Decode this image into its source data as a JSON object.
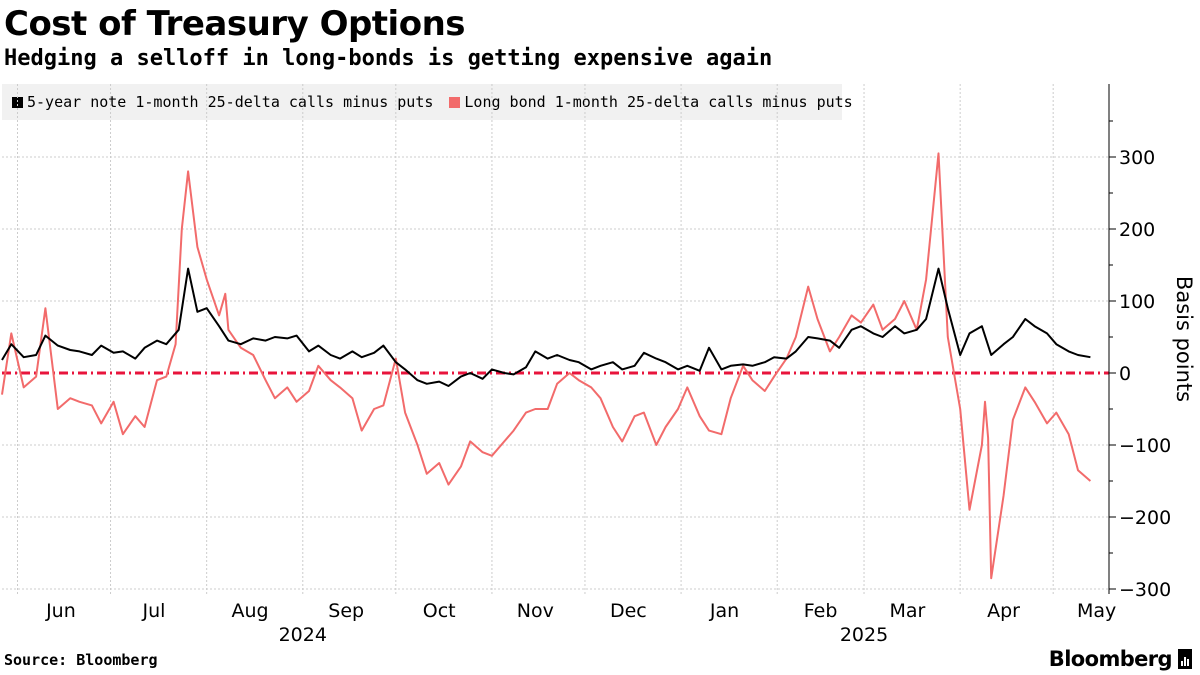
{
  "header": {
    "title": "Cost of Treasury Options",
    "subtitle": "Hedging a selloff in long-bonds is getting expensive again"
  },
  "footer": {
    "source": "Source: Bloomberg",
    "brand": "Bloomberg"
  },
  "colors": {
    "five_year": "#000000",
    "long_bond": "#f26b6b",
    "zero_line": "#e8143c",
    "grid": "#cccccc"
  },
  "chart_data": {
    "type": "line",
    "ylabel": "Basis points",
    "ylim": [
      -350,
      360
    ],
    "yticks": [
      300,
      200,
      100,
      0,
      -100,
      -200,
      -300
    ],
    "x_range": [
      "2024-05-27",
      "2025-05-19"
    ],
    "x_ticks": [
      {
        "label": "Jun",
        "month": 6,
        "year": 2024
      },
      {
        "label": "Jul",
        "month": 7,
        "year": 2024
      },
      {
        "label": "Aug",
        "month": 8,
        "year": 2024
      },
      {
        "label": "Sep",
        "month": 9,
        "year": 2024
      },
      {
        "label": "Oct",
        "month": 10,
        "year": 2024
      },
      {
        "label": "Nov",
        "month": 11,
        "year": 2024
      },
      {
        "label": "Dec",
        "month": 12,
        "year": 2024
      },
      {
        "label": "Jan",
        "month": 1,
        "year": 2025
      },
      {
        "label": "Feb",
        "month": 2,
        "year": 2025
      },
      {
        "label": "Mar",
        "month": 3,
        "year": 2025
      },
      {
        "label": "Apr",
        "month": 4,
        "year": 2025
      },
      {
        "label": "May",
        "month": 5,
        "year": 2025
      }
    ],
    "year_labels": [
      {
        "label": "2024",
        "date": "2024-09-01"
      },
      {
        "label": "2025",
        "date": "2025-03-01"
      }
    ],
    "reference_line": 0,
    "grid": true,
    "legend_position": "top-left",
    "series": [
      {
        "name": "5-year note 1-month 25-delta calls minus puts",
        "color": "#000000",
        "points": [
          [
            "2024-05-27",
            18
          ],
          [
            "2024-05-30",
            40
          ],
          [
            "2024-06-03",
            22
          ],
          [
            "2024-06-07",
            25
          ],
          [
            "2024-06-10",
            52
          ],
          [
            "2024-06-14",
            38
          ],
          [
            "2024-06-18",
            32
          ],
          [
            "2024-06-21",
            30
          ],
          [
            "2024-06-25",
            25
          ],
          [
            "2024-06-28",
            38
          ],
          [
            "2024-07-02",
            28
          ],
          [
            "2024-07-05",
            30
          ],
          [
            "2024-07-09",
            20
          ],
          [
            "2024-07-12",
            35
          ],
          [
            "2024-07-16",
            45
          ],
          [
            "2024-07-19",
            40
          ],
          [
            "2024-07-23",
            60
          ],
          [
            "2024-07-26",
            145
          ],
          [
            "2024-07-29",
            85
          ],
          [
            "2024-08-01",
            90
          ],
          [
            "2024-08-05",
            65
          ],
          [
            "2024-08-08",
            45
          ],
          [
            "2024-08-12",
            40
          ],
          [
            "2024-08-16",
            48
          ],
          [
            "2024-08-20",
            45
          ],
          [
            "2024-08-23",
            50
          ],
          [
            "2024-08-27",
            48
          ],
          [
            "2024-08-30",
            52
          ],
          [
            "2024-09-03",
            30
          ],
          [
            "2024-09-06",
            38
          ],
          [
            "2024-09-10",
            25
          ],
          [
            "2024-09-13",
            20
          ],
          [
            "2024-09-17",
            30
          ],
          [
            "2024-09-20",
            22
          ],
          [
            "2024-09-24",
            28
          ],
          [
            "2024-09-27",
            38
          ],
          [
            "2024-10-01",
            15
          ],
          [
            "2024-10-04",
            5
          ],
          [
            "2024-10-08",
            -10
          ],
          [
            "2024-10-11",
            -15
          ],
          [
            "2024-10-15",
            -12
          ],
          [
            "2024-10-18",
            -18
          ],
          [
            "2024-10-22",
            -5
          ],
          [
            "2024-10-25",
            0
          ],
          [
            "2024-10-29",
            -8
          ],
          [
            "2024-11-01",
            5
          ],
          [
            "2024-11-05",
            0
          ],
          [
            "2024-11-08",
            -2
          ],
          [
            "2024-11-12",
            8
          ],
          [
            "2024-11-15",
            30
          ],
          [
            "2024-11-19",
            20
          ],
          [
            "2024-11-22",
            25
          ],
          [
            "2024-11-26",
            18
          ],
          [
            "2024-11-29",
            15
          ],
          [
            "2024-12-03",
            5
          ],
          [
            "2024-12-06",
            10
          ],
          [
            "2024-12-10",
            15
          ],
          [
            "2024-12-13",
            5
          ],
          [
            "2024-12-17",
            10
          ],
          [
            "2024-12-20",
            28
          ],
          [
            "2024-12-24",
            20
          ],
          [
            "2024-12-27",
            15
          ],
          [
            "2024-12-31",
            5
          ],
          [
            "2025-01-03",
            10
          ],
          [
            "2025-01-07",
            3
          ],
          [
            "2025-01-10",
            35
          ],
          [
            "2025-01-14",
            5
          ],
          [
            "2025-01-17",
            10
          ],
          [
            "2025-01-21",
            12
          ],
          [
            "2025-01-24",
            10
          ],
          [
            "2025-01-28",
            15
          ],
          [
            "2025-01-31",
            22
          ],
          [
            "2025-02-04",
            20
          ],
          [
            "2025-02-07",
            30
          ],
          [
            "2025-02-11",
            50
          ],
          [
            "2025-02-14",
            48
          ],
          [
            "2025-02-18",
            45
          ],
          [
            "2025-02-21",
            35
          ],
          [
            "2025-02-25",
            60
          ],
          [
            "2025-02-28",
            65
          ],
          [
            "2025-03-04",
            55
          ],
          [
            "2025-03-07",
            50
          ],
          [
            "2025-03-11",
            65
          ],
          [
            "2025-03-14",
            55
          ],
          [
            "2025-03-18",
            60
          ],
          [
            "2025-03-21",
            75
          ],
          [
            "2025-03-25",
            145
          ],
          [
            "2025-03-28",
            90
          ],
          [
            "2025-04-01",
            25
          ],
          [
            "2025-04-04",
            55
          ],
          [
            "2025-04-08",
            65
          ],
          [
            "2025-04-11",
            25
          ],
          [
            "2025-04-15",
            40
          ],
          [
            "2025-04-18",
            50
          ],
          [
            "2025-04-22",
            75
          ],
          [
            "2025-04-25",
            65
          ],
          [
            "2025-04-29",
            55
          ],
          [
            "2025-05-02",
            40
          ],
          [
            "2025-05-06",
            30
          ],
          [
            "2025-05-09",
            25
          ],
          [
            "2025-05-13",
            22
          ]
        ]
      },
      {
        "name": "Long bond 1-month 25-delta calls minus puts",
        "color": "#f26b6b",
        "points": [
          [
            "2024-05-27",
            -30
          ],
          [
            "2024-05-30",
            55
          ],
          [
            "2024-06-03",
            -20
          ],
          [
            "2024-06-07",
            -5
          ],
          [
            "2024-06-10",
            90
          ],
          [
            "2024-06-12",
            20
          ],
          [
            "2024-06-14",
            -50
          ],
          [
            "2024-06-18",
            -35
          ],
          [
            "2024-06-21",
            -40
          ],
          [
            "2024-06-25",
            -45
          ],
          [
            "2024-06-28",
            -70
          ],
          [
            "2024-07-02",
            -40
          ],
          [
            "2024-07-05",
            -85
          ],
          [
            "2024-07-09",
            -60
          ],
          [
            "2024-07-12",
            -75
          ],
          [
            "2024-07-16",
            -10
          ],
          [
            "2024-07-19",
            -5
          ],
          [
            "2024-07-22",
            40
          ],
          [
            "2024-07-24",
            200
          ],
          [
            "2024-07-26",
            280
          ],
          [
            "2024-07-29",
            175
          ],
          [
            "2024-08-01",
            130
          ],
          [
            "2024-08-05",
            80
          ],
          [
            "2024-08-07",
            110
          ],
          [
            "2024-08-08",
            60
          ],
          [
            "2024-08-12",
            35
          ],
          [
            "2024-08-16",
            25
          ],
          [
            "2024-08-20",
            -10
          ],
          [
            "2024-08-23",
            -35
          ],
          [
            "2024-08-27",
            -20
          ],
          [
            "2024-08-30",
            -40
          ],
          [
            "2024-09-03",
            -25
          ],
          [
            "2024-09-06",
            10
          ],
          [
            "2024-09-10",
            -10
          ],
          [
            "2024-09-13",
            -20
          ],
          [
            "2024-09-17",
            -35
          ],
          [
            "2024-09-20",
            -80
          ],
          [
            "2024-09-24",
            -50
          ],
          [
            "2024-09-27",
            -45
          ],
          [
            "2024-10-01",
            20
          ],
          [
            "2024-10-04",
            -55
          ],
          [
            "2024-10-08",
            -100
          ],
          [
            "2024-10-11",
            -140
          ],
          [
            "2024-10-15",
            -125
          ],
          [
            "2024-10-18",
            -155
          ],
          [
            "2024-10-22",
            -130
          ],
          [
            "2024-10-25",
            -95
          ],
          [
            "2024-10-29",
            -110
          ],
          [
            "2024-11-01",
            -115
          ],
          [
            "2024-11-05",
            -95
          ],
          [
            "2024-11-08",
            -80
          ],
          [
            "2024-11-12",
            -55
          ],
          [
            "2024-11-15",
            -50
          ],
          [
            "2024-11-19",
            -50
          ],
          [
            "2024-11-22",
            -15
          ],
          [
            "2024-11-26",
            0
          ],
          [
            "2024-11-29",
            -10
          ],
          [
            "2024-12-03",
            -20
          ],
          [
            "2024-12-06",
            -35
          ],
          [
            "2024-12-10",
            -75
          ],
          [
            "2024-12-13",
            -95
          ],
          [
            "2024-12-17",
            -60
          ],
          [
            "2024-12-20",
            -55
          ],
          [
            "2024-12-24",
            -100
          ],
          [
            "2024-12-27",
            -75
          ],
          [
            "2024-12-31",
            -50
          ],
          [
            "2025-01-03",
            -20
          ],
          [
            "2025-01-07",
            -60
          ],
          [
            "2025-01-10",
            -80
          ],
          [
            "2025-01-14",
            -85
          ],
          [
            "2025-01-17",
            -35
          ],
          [
            "2025-01-21",
            10
          ],
          [
            "2025-01-24",
            -10
          ],
          [
            "2025-01-28",
            -25
          ],
          [
            "2025-01-31",
            -5
          ],
          [
            "2025-02-04",
            20
          ],
          [
            "2025-02-07",
            50
          ],
          [
            "2025-02-11",
            120
          ],
          [
            "2025-02-14",
            75
          ],
          [
            "2025-02-18",
            30
          ],
          [
            "2025-02-21",
            50
          ],
          [
            "2025-02-25",
            80
          ],
          [
            "2025-02-28",
            70
          ],
          [
            "2025-03-04",
            95
          ],
          [
            "2025-03-07",
            60
          ],
          [
            "2025-03-11",
            75
          ],
          [
            "2025-03-14",
            100
          ],
          [
            "2025-03-18",
            60
          ],
          [
            "2025-03-21",
            130
          ],
          [
            "2025-03-25",
            305
          ],
          [
            "2025-03-28",
            50
          ],
          [
            "2025-04-01",
            -50
          ],
          [
            "2025-04-04",
            -190
          ],
          [
            "2025-04-08",
            -100
          ],
          [
            "2025-04-09",
            -40
          ],
          [
            "2025-04-10",
            -90
          ],
          [
            "2025-04-11",
            -285
          ],
          [
            "2025-04-15",
            -170
          ],
          [
            "2025-04-18",
            -65
          ],
          [
            "2025-04-22",
            -20
          ],
          [
            "2025-04-25",
            -40
          ],
          [
            "2025-04-29",
            -70
          ],
          [
            "2025-05-02",
            -55
          ],
          [
            "2025-05-06",
            -85
          ],
          [
            "2025-05-09",
            -135
          ],
          [
            "2025-05-13",
            -150
          ]
        ]
      }
    ]
  }
}
